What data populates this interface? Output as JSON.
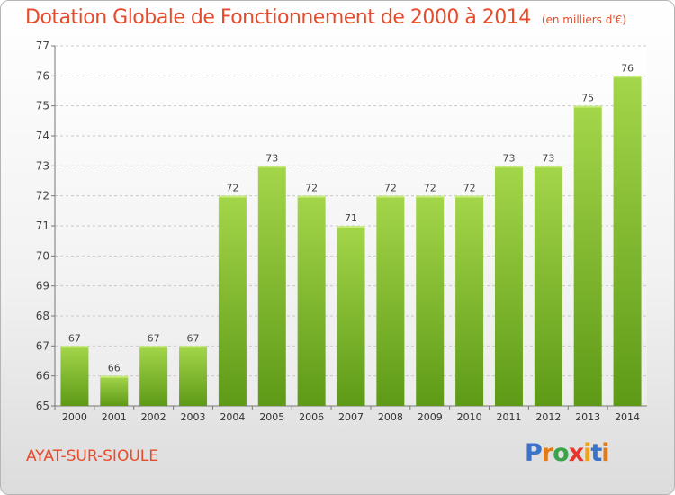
{
  "title": "Dotation Globale de Fonctionnement de 2000 à 2014",
  "unit_label": "(en milliers d'€)",
  "commune": "AYAT-SUR-SIOULE",
  "logo_text": "Proxiti",
  "colors": {
    "bar_top": "#a4d64a",
    "bar_bottom": "#5e9a17",
    "title": "#e84b2b",
    "logo_letters": [
      "#3a73c9",
      "#e07a1a",
      "#3aa24a",
      "#e8342b",
      "#f0a21a",
      "#3a73c9",
      "#e07a1a"
    ]
  },
  "chart_data": {
    "type": "bar",
    "title": "Dotation Globale de Fonctionnement de 2000 à 2014",
    "xlabel": "",
    "ylabel": "",
    "categories": [
      "2000",
      "2001",
      "2002",
      "2003",
      "2004",
      "2005",
      "2006",
      "2007",
      "2008",
      "2009",
      "2010",
      "2011",
      "2012",
      "2013",
      "2014"
    ],
    "values": [
      67,
      66,
      67,
      67,
      72,
      73,
      72,
      71,
      72,
      72,
      72,
      73,
      73,
      75,
      76
    ],
    "ylim": [
      65,
      77
    ],
    "yticks": [
      65,
      66,
      67,
      68,
      69,
      70,
      71,
      72,
      73,
      74,
      75,
      76,
      77
    ],
    "grid": true,
    "data_labels": true
  }
}
